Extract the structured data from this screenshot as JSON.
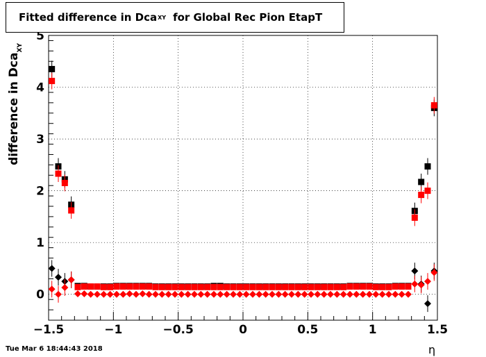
{
  "title": {
    "main": "Fitted difference in Dca",
    "sub": "XY",
    "tail": "for Global Rec Pion EtapT"
  },
  "ylabel": {
    "main": "difference in Dca",
    "sub": "XY"
  },
  "xlabel": "η",
  "timestamp": "Tue Mar  6 18:44:43 2018",
  "chart_data": {
    "type": "scatter",
    "xlim": [
      -1.5,
      1.5
    ],
    "ylim": [
      -0.5,
      5
    ],
    "grid": true,
    "xticks": [
      "−1.5",
      "−1",
      "−0.5",
      "0",
      "0.5",
      "1",
      "1.5"
    ],
    "xtick_values": [
      -1.5,
      -1,
      -0.5,
      0,
      0.5,
      1,
      1.5
    ],
    "yticks": [
      "0",
      "1",
      "2",
      "3",
      "4",
      "5"
    ],
    "ytick_values": [
      0,
      1,
      2,
      3,
      4,
      5
    ],
    "series": [
      {
        "marker": "square",
        "color": "#000000",
        "x": [
          -1.475,
          -1.425,
          -1.375,
          -1.325,
          -1.275,
          -1.225,
          -1.175,
          -1.125,
          -1.075,
          -1.025,
          -0.975,
          -0.925,
          -0.875,
          -0.825,
          -0.775,
          -0.725,
          -0.675,
          -0.625,
          -0.575,
          -0.525,
          -0.475,
          -0.425,
          -0.375,
          -0.325,
          -0.275,
          -0.225,
          -0.175,
          -0.125,
          -0.075,
          -0.025,
          0.025,
          0.075,
          0.125,
          0.175,
          0.225,
          0.275,
          0.325,
          0.375,
          0.425,
          0.475,
          0.525,
          0.575,
          0.625,
          0.675,
          0.725,
          0.775,
          0.825,
          0.875,
          0.925,
          0.975,
          1.025,
          1.075,
          1.125,
          1.175,
          1.225,
          1.275,
          1.325,
          1.375,
          1.425,
          1.475
        ],
        "y": [
          4.35,
          2.47,
          2.22,
          1.73,
          0.16,
          0.16,
          0.15,
          0.15,
          0.15,
          0.15,
          0.16,
          0.16,
          0.16,
          0.16,
          0.16,
          0.16,
          0.15,
          0.15,
          0.15,
          0.15,
          0.15,
          0.15,
          0.15,
          0.15,
          0.15,
          0.16,
          0.16,
          0.15,
          0.15,
          0.15,
          0.15,
          0.15,
          0.15,
          0.15,
          0.15,
          0.15,
          0.15,
          0.15,
          0.15,
          0.15,
          0.15,
          0.15,
          0.15,
          0.15,
          0.15,
          0.15,
          0.16,
          0.16,
          0.16,
          0.16,
          0.15,
          0.15,
          0.15,
          0.16,
          0.16,
          0.16,
          1.61,
          2.17,
          2.47,
          3.6
        ]
      },
      {
        "marker": "square",
        "color": "#ff0000",
        "x": [
          -1.475,
          -1.425,
          -1.375,
          -1.325,
          -1.275,
          -1.225,
          -1.175,
          -1.125,
          -1.075,
          -1.025,
          -0.975,
          -0.925,
          -0.875,
          -0.825,
          -0.775,
          -0.725,
          -0.675,
          -0.625,
          -0.575,
          -0.525,
          -0.475,
          -0.425,
          -0.375,
          -0.325,
          -0.275,
          -0.225,
          -0.175,
          -0.125,
          -0.075,
          -0.025,
          0.025,
          0.075,
          0.125,
          0.175,
          0.225,
          0.275,
          0.325,
          0.375,
          0.425,
          0.475,
          0.525,
          0.575,
          0.625,
          0.675,
          0.725,
          0.775,
          0.825,
          0.875,
          0.925,
          0.975,
          1.025,
          1.075,
          1.125,
          1.175,
          1.225,
          1.275,
          1.325,
          1.375,
          1.425,
          1.475
        ],
        "y": [
          4.12,
          2.33,
          2.15,
          1.62,
          0.14,
          0.15,
          0.15,
          0.15,
          0.14,
          0.14,
          0.15,
          0.15,
          0.15,
          0.15,
          0.15,
          0.15,
          0.14,
          0.14,
          0.14,
          0.14,
          0.14,
          0.14,
          0.14,
          0.14,
          0.14,
          0.14,
          0.14,
          0.14,
          0.14,
          0.14,
          0.14,
          0.14,
          0.14,
          0.14,
          0.14,
          0.14,
          0.14,
          0.14,
          0.14,
          0.14,
          0.14,
          0.14,
          0.14,
          0.14,
          0.14,
          0.14,
          0.15,
          0.15,
          0.15,
          0.15,
          0.14,
          0.14,
          0.14,
          0.15,
          0.15,
          0.15,
          1.48,
          1.92,
          2.0,
          3.65
        ]
      },
      {
        "marker": "diamond",
        "color": "#000000",
        "x": [
          -1.475,
          -1.425,
          -1.375,
          -1.325,
          1.325,
          1.375,
          1.425,
          1.475
        ],
        "y": [
          0.5,
          0.33,
          0.25,
          0.28,
          0.45,
          0.2,
          -0.18,
          0.45
        ]
      },
      {
        "marker": "diamond",
        "color": "#ff0000",
        "x": [
          -1.475,
          -1.425,
          -1.375,
          -1.325,
          -1.275,
          -1.225,
          -1.175,
          -1.125,
          -1.075,
          -1.025,
          -0.975,
          -0.925,
          -0.875,
          -0.825,
          -0.775,
          -0.725,
          -0.675,
          -0.625,
          -0.575,
          -0.525,
          -0.475,
          -0.425,
          -0.375,
          -0.325,
          -0.275,
          -0.225,
          -0.175,
          -0.125,
          -0.075,
          -0.025,
          0.025,
          0.075,
          0.125,
          0.175,
          0.225,
          0.275,
          0.325,
          0.375,
          0.425,
          0.475,
          0.525,
          0.575,
          0.625,
          0.675,
          0.725,
          0.775,
          0.825,
          0.875,
          0.925,
          0.975,
          1.025,
          1.075,
          1.125,
          1.175,
          1.225,
          1.275,
          1.325,
          1.375,
          1.425,
          1.475
        ],
        "y": [
          0.1,
          0.0,
          0.13,
          0.28,
          0.01,
          0.01,
          0.0,
          0.0,
          0.0,
          0.0,
          0.0,
          0.0,
          0.01,
          0.0,
          0.01,
          0.0,
          0.0,
          0.0,
          0.0,
          0.0,
          0.0,
          0.0,
          0.0,
          0.0,
          0.0,
          0.0,
          0.0,
          0.0,
          0.0,
          0.0,
          0.0,
          0.0,
          0.0,
          0.0,
          0.0,
          0.0,
          0.0,
          0.0,
          0.0,
          0.0,
          0.0,
          0.0,
          0.0,
          0.0,
          0.0,
          0.0,
          0.0,
          0.0,
          0.0,
          0.0,
          0.0,
          0.0,
          0.0,
          0.0,
          0.0,
          0.0,
          0.2,
          0.18,
          0.25,
          0.42
        ]
      }
    ]
  }
}
